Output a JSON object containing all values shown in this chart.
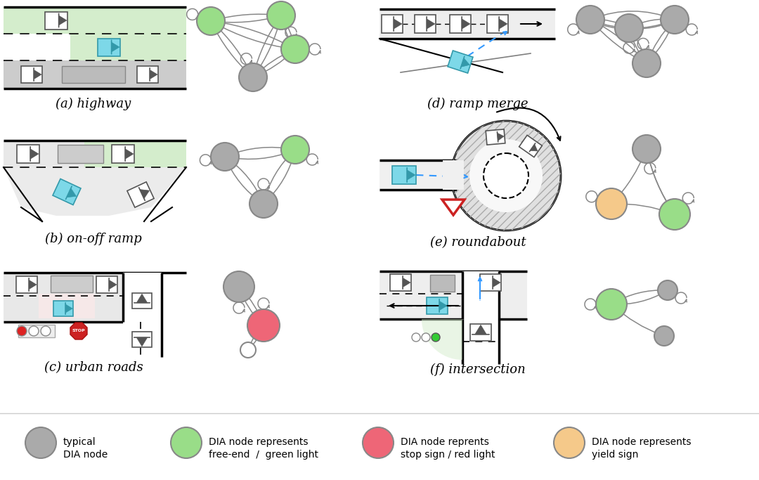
{
  "bg_color": "#ffffff",
  "gray_node": "#aaaaaa",
  "green_node": "#99dd88",
  "red_node": "#ee6677",
  "yellow_node": "#f5c98a",
  "road_gray": "#cccccc",
  "road_green": "#d4edcc",
  "road_pink": "#fde8e8",
  "car_cyan": "#7dd8e8",
  "line_color": "#555555",
  "labels": {
    "a": "(a) highway",
    "b": "(b) on-off ramp",
    "c": "(c) urban roads",
    "d": "(d) ramp merge",
    "e": "(e) roundabout",
    "f": "(f) intersection"
  },
  "legend": {
    "gray_label": [
      "typical",
      "DIA node"
    ],
    "green_label": [
      "DIA node represents",
      "free-end  /  green light"
    ],
    "red_label": [
      "DIA node reprents",
      "stop sign / red light"
    ],
    "yellow_label": [
      "DIA node represents",
      "yield sign"
    ]
  }
}
